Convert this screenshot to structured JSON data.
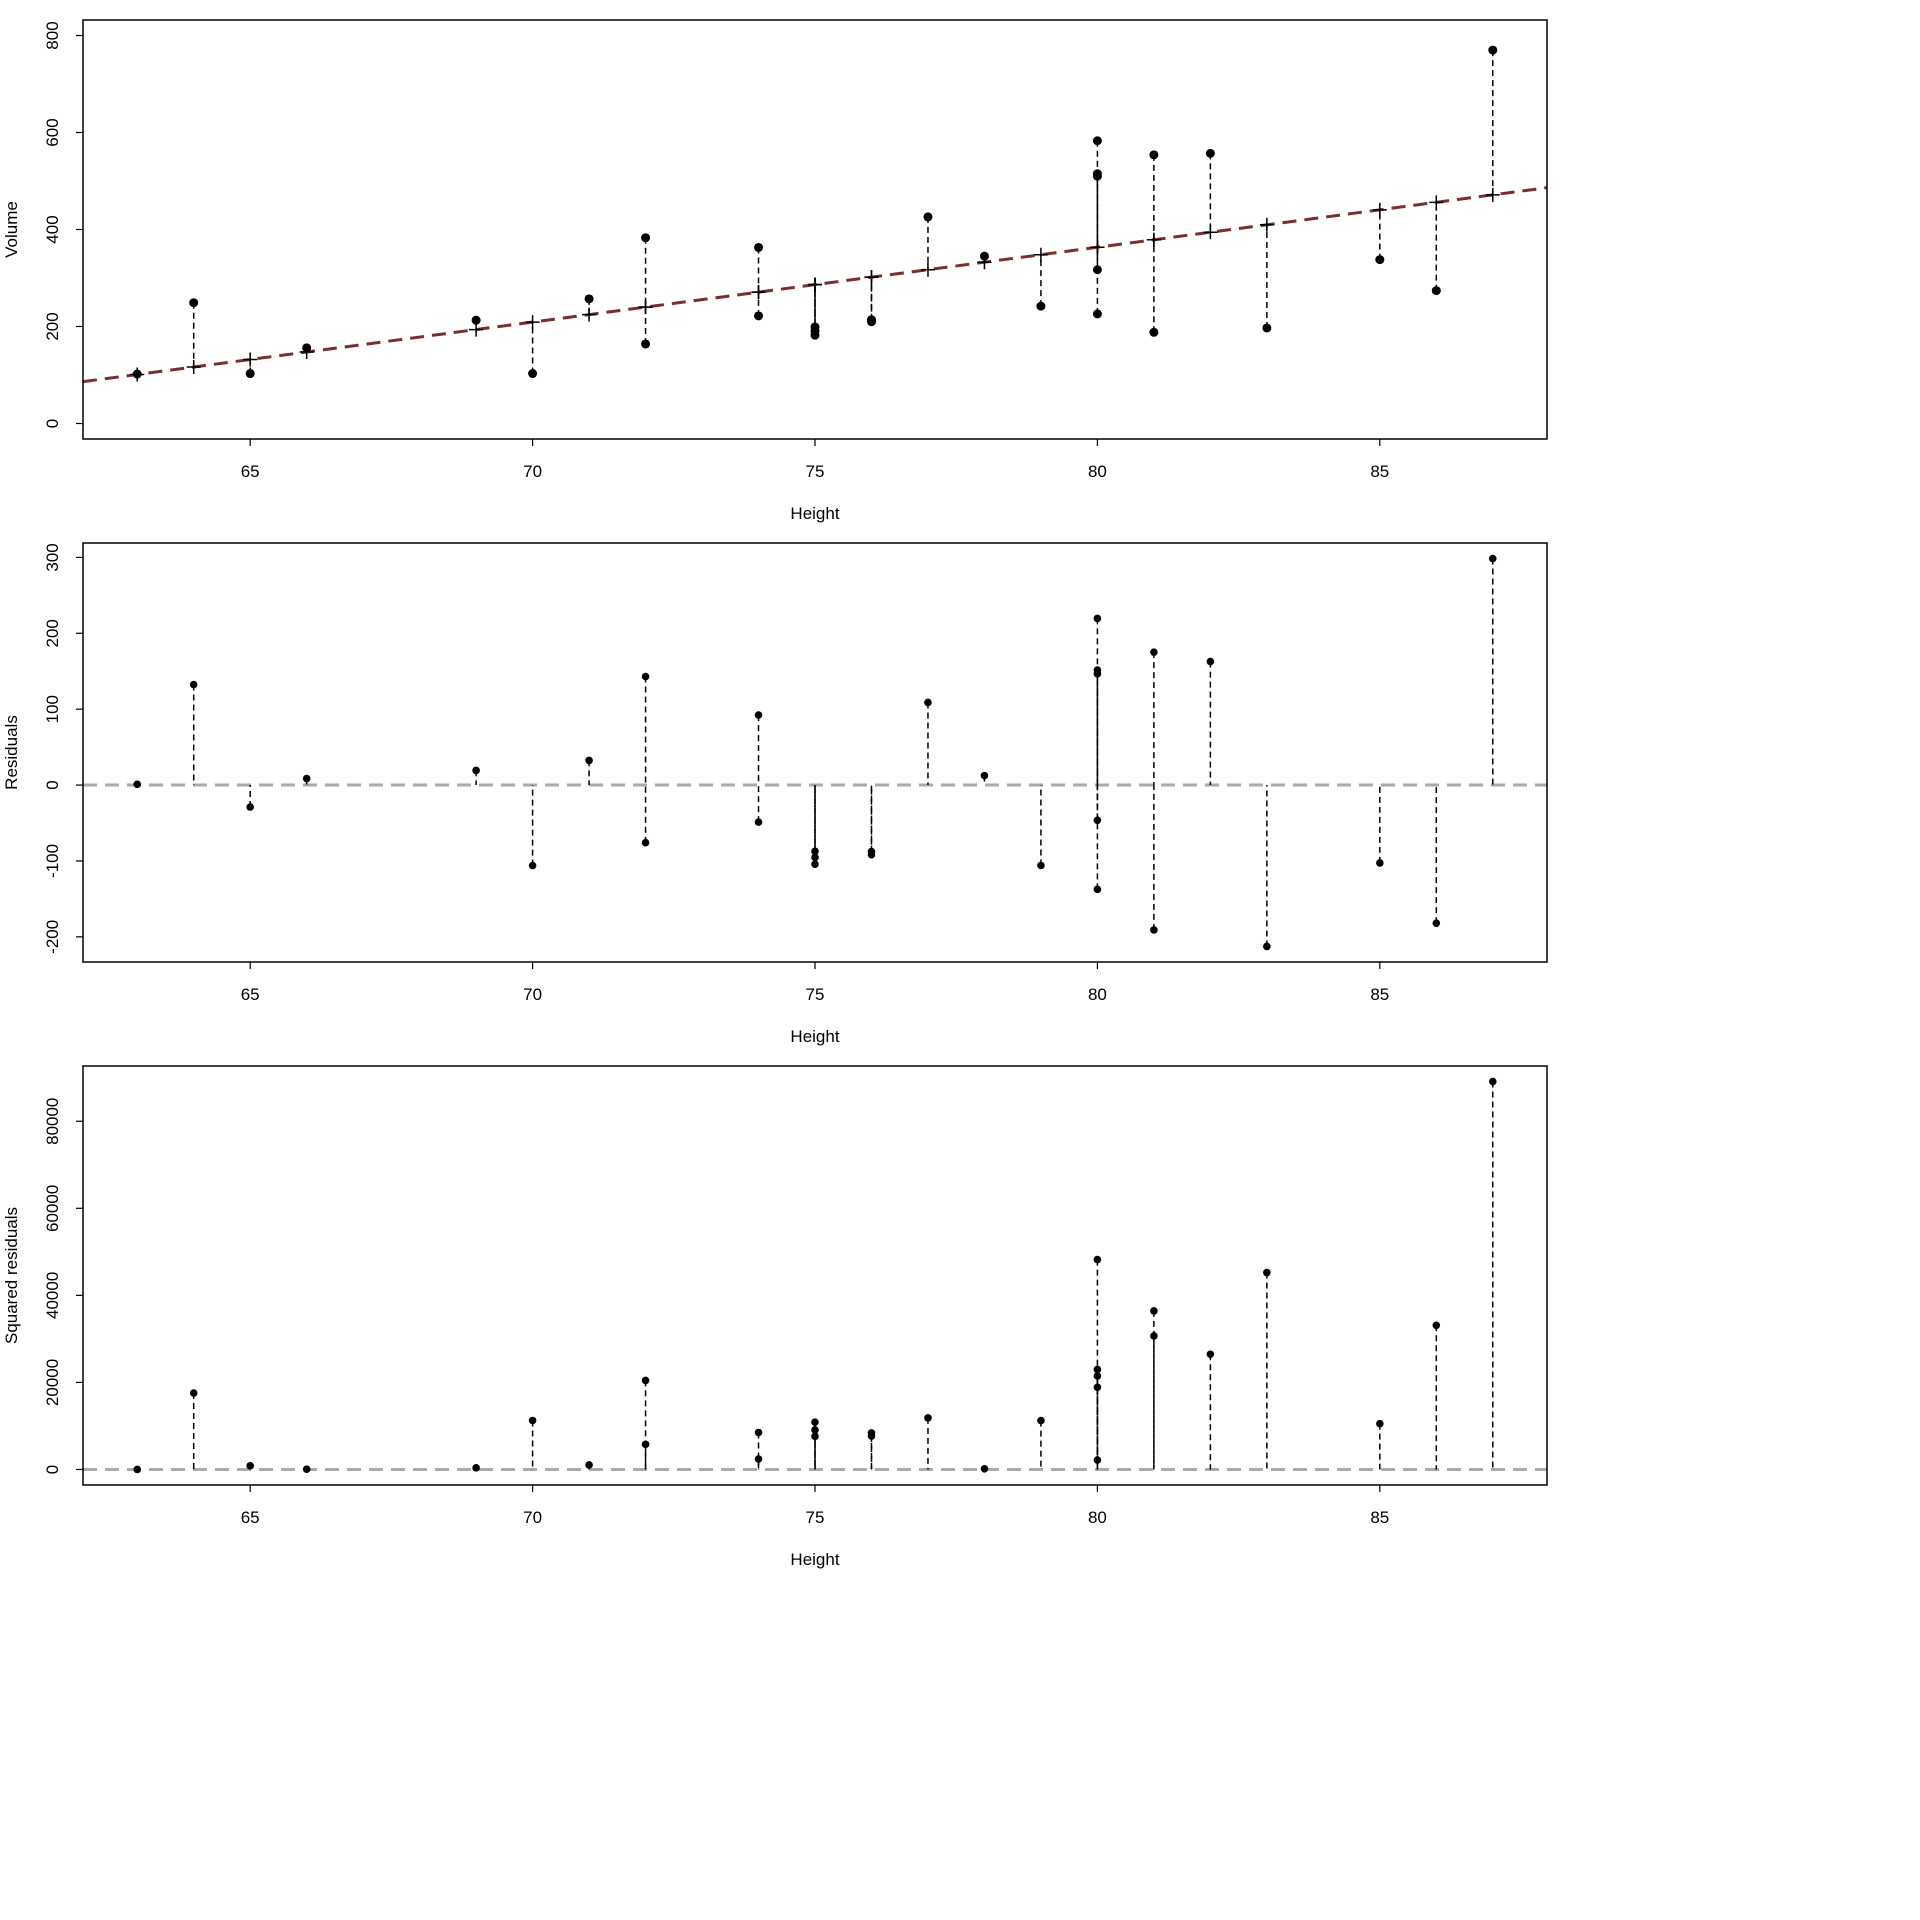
{
  "chart_data": [
    {
      "type": "scatter",
      "xlabel": "Height",
      "ylabel": "Volume",
      "xlim": [
        63,
        87
      ],
      "ylim": [
        0,
        800
      ],
      "xticks": [
        65,
        70,
        75,
        80,
        85
      ],
      "yticks": [
        0,
        200,
        400,
        600,
        800
      ],
      "grid": false,
      "fit_line": {
        "intercept": -871.24,
        "slope": 15.4333,
        "color": "#7a2e2e",
        "style": "dashed"
      },
      "show_fitted_markers": true,
      "series_key": "volume"
    },
    {
      "type": "scatter",
      "xlabel": "Height",
      "ylabel": "Residuals",
      "xlim": [
        63,
        87
      ],
      "ylim": [
        -212.72,
        298.54
      ],
      "xticks": [
        65,
        70,
        75,
        80,
        85
      ],
      "yticks": [
        -200,
        -100,
        0,
        100,
        200,
        300
      ],
      "grid": false,
      "reference_line": {
        "y": 0,
        "color": "#aaaaaa",
        "style": "dashed"
      },
      "series_key": "residual"
    },
    {
      "type": "scatter",
      "xlabel": "Height",
      "ylabel": "Squared residuals",
      "xlim": [
        63,
        87
      ],
      "ylim": [
        0,
        89126
      ],
      "xticks": [
        65,
        70,
        75,
        80,
        85
      ],
      "yticks": [
        0,
        20000,
        40000,
        60000,
        80000
      ],
      "grid": false,
      "reference_line": {
        "y": 0,
        "color": "#aaaaaa",
        "style": "dashed"
      },
      "series_key": "squared_residual"
    }
  ],
  "points": [
    {
      "height": 70,
      "volume": 103,
      "fitted": 209.09,
      "residual": -106.09,
      "squared_residual": 11255
    },
    {
      "height": 65,
      "volume": 103,
      "fitted": 131.92,
      "residual": -28.92,
      "squared_residual": 836
    },
    {
      "height": 63,
      "volume": 102,
      "fitted": 101.06,
      "residual": 0.94,
      "squared_residual": 1
    },
    {
      "height": 72,
      "volume": 164,
      "fitted": 239.96,
      "residual": -75.96,
      "squared_residual": 5770
    },
    {
      "height": 81,
      "volume": 188,
      "fitted": 378.86,
      "residual": -190.86,
      "squared_residual": 36427
    },
    {
      "height": 83,
      "volume": 197,
      "fitted": 409.72,
      "residual": -212.72,
      "squared_residual": 45250
    },
    {
      "height": 66,
      "volume": 156,
      "fitted": 147.36,
      "residual": 8.64,
      "squared_residual": 75
    },
    {
      "height": 75,
      "volume": 182,
      "fitted": 286.26,
      "residual": -104.26,
      "squared_residual": 10870
    },
    {
      "height": 80,
      "volume": 226,
      "fitted": 363.42,
      "residual": -137.42,
      "squared_residual": 18884
    },
    {
      "height": 75,
      "volume": 199,
      "fitted": 286.26,
      "residual": -87.26,
      "squared_residual": 7614
    },
    {
      "height": 79,
      "volume": 242,
      "fitted": 347.99,
      "residual": -105.99,
      "squared_residual": 11234
    },
    {
      "height": 76,
      "volume": 210,
      "fitted": 301.69,
      "residual": -91.69,
      "squared_residual": 8407
    },
    {
      "height": 76,
      "volume": 214,
      "fitted": 301.69,
      "residual": -87.69,
      "squared_residual": 7690
    },
    {
      "height": 69,
      "volume": 213,
      "fitted": 193.66,
      "residual": 19.34,
      "squared_residual": 374
    },
    {
      "height": 75,
      "volume": 191,
      "fitted": 286.26,
      "residual": -95.26,
      "squared_residual": 9074
    },
    {
      "height": 74,
      "volume": 222,
      "fitted": 270.82,
      "residual": -48.82,
      "squared_residual": 2383
    },
    {
      "height": 85,
      "volume": 338,
      "fitted": 440.59,
      "residual": -102.59,
      "squared_residual": 10525
    },
    {
      "height": 86,
      "volume": 274,
      "fitted": 456.02,
      "residual": -182.02,
      "squared_residual": 33131
    },
    {
      "height": 71,
      "volume": 257,
      "fitted": 224.52,
      "residual": 32.48,
      "squared_residual": 1055
    },
    {
      "height": 64,
      "volume": 249,
      "fitted": 116.49,
      "residual": 132.51,
      "squared_residual": 17559
    },
    {
      "height": 78,
      "volume": 345,
      "fitted": 332.56,
      "residual": 12.44,
      "squared_residual": 155
    },
    {
      "height": 80,
      "volume": 317,
      "fitted": 363.42,
      "residual": -46.42,
      "squared_residual": 2155
    },
    {
      "height": 74,
      "volume": 363,
      "fitted": 270.82,
      "residual": 92.18,
      "squared_residual": 8497
    },
    {
      "height": 72,
      "volume": 383,
      "fitted": 239.96,
      "residual": 143.04,
      "squared_residual": 20460
    },
    {
      "height": 77,
      "volume": 426,
      "fitted": 317.12,
      "residual": 108.88,
      "squared_residual": 11855
    },
    {
      "height": 81,
      "volume": 554,
      "fitted": 378.86,
      "residual": 175.14,
      "squared_residual": 30674
    },
    {
      "height": 82,
      "volume": 557,
      "fitted": 394.29,
      "residual": 162.71,
      "squared_residual": 26474
    },
    {
      "height": 80,
      "volume": 583,
      "fitted": 363.42,
      "residual": 219.58,
      "squared_residual": 48215
    },
    {
      "height": 80,
      "volume": 515,
      "fitted": 363.42,
      "residual": 151.58,
      "squared_residual": 22977
    },
    {
      "height": 80,
      "volume": 510,
      "fitted": 363.42,
      "residual": 146.58,
      "squared_residual": 21486
    },
    {
      "height": 87,
      "volume": 770,
      "fitted": 471.46,
      "residual": 298.54,
      "squared_residual": 89126
    }
  ]
}
